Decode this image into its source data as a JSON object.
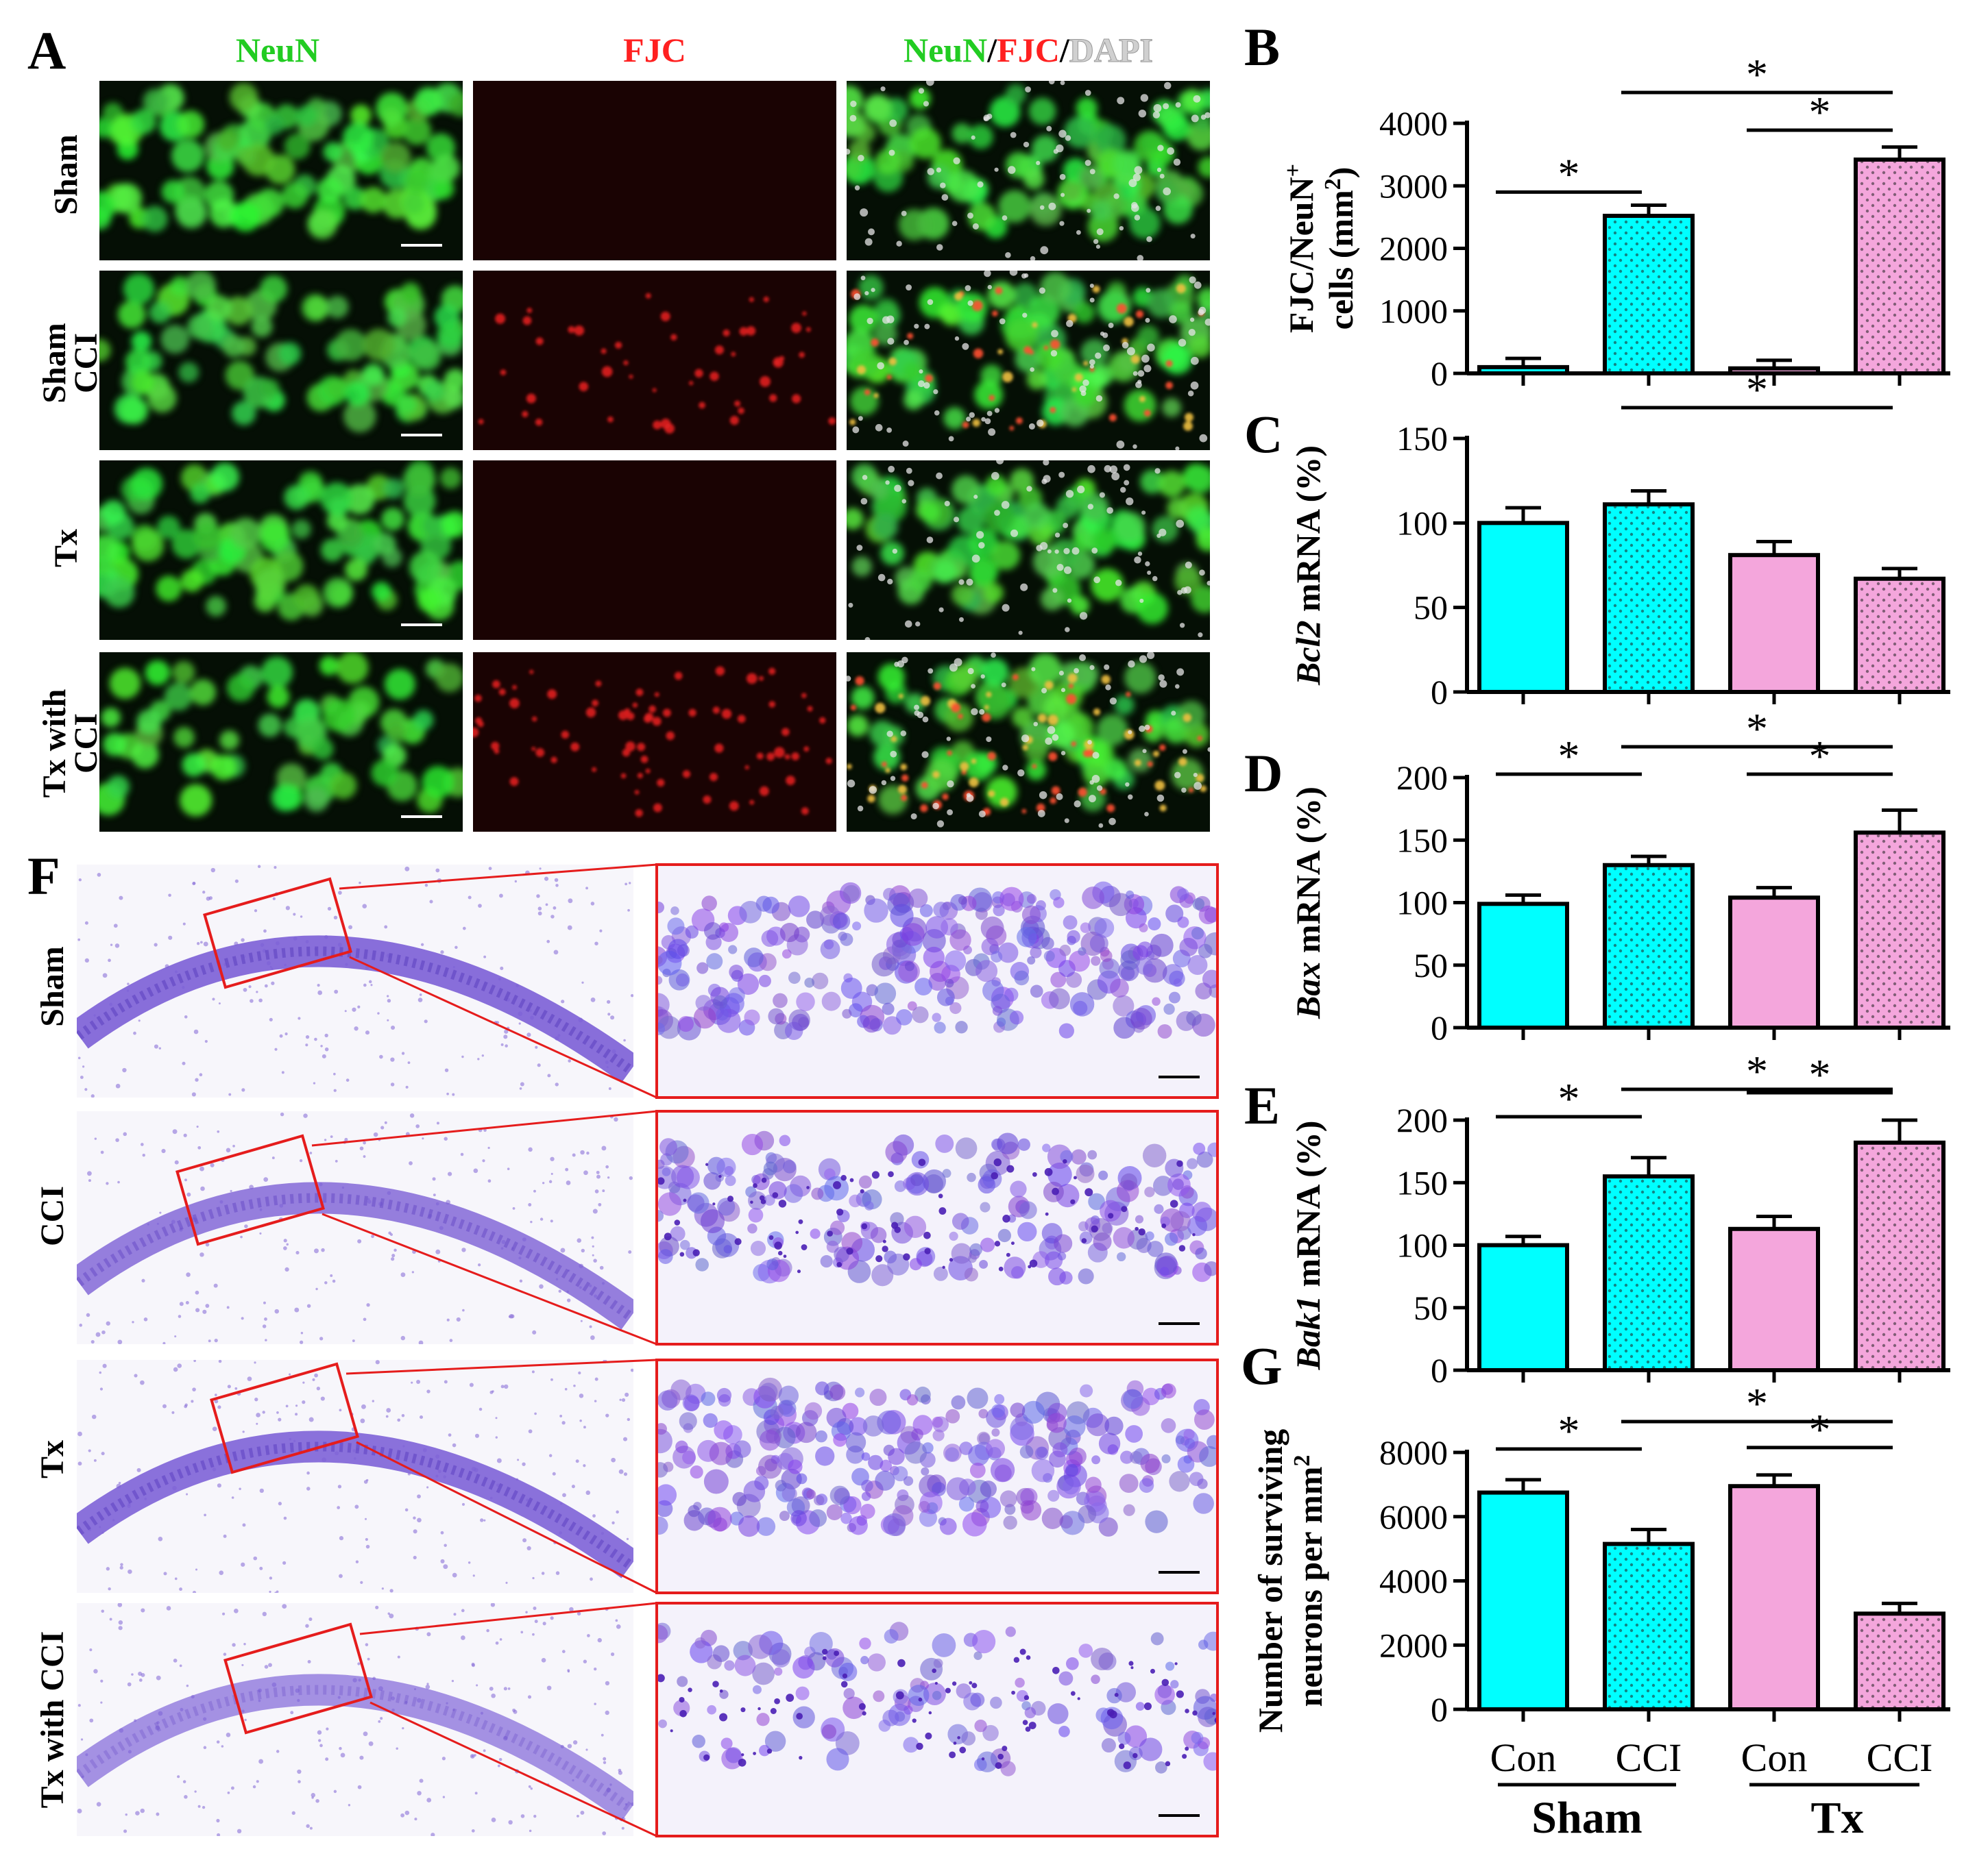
{
  "panel_labels": {
    "a": "A",
    "b": "B",
    "c": "C",
    "d": "D",
    "e": "E",
    "f": "F",
    "g": "G"
  },
  "colors": {
    "con": "#00ffff",
    "tx": "#f4a6dc",
    "neun": "#22cc22",
    "fjc": "#ff2020",
    "dapi": "#d0d0d0",
    "red_box": "#e51c1c",
    "nissl": "#7b5fd6"
  },
  "panel_a": {
    "col_headers": {
      "neun": "NeuN",
      "fjc": "FJC",
      "merge": {
        "neun": "NeuN",
        "sep1": "/",
        "fjc": "FJC",
        "sep2": "/",
        "dapi": "DAPI"
      }
    },
    "rows": [
      {
        "line1": "Sham",
        "line2": ""
      },
      {
        "line1": "Sham",
        "line2": "CCI"
      },
      {
        "line1": "Tx",
        "line2": ""
      },
      {
        "line1": "Tx with",
        "line2": "CCI"
      }
    ],
    "fjc_intensity": [
      0,
      0.55,
      0,
      0.85
    ],
    "neun_intensity": [
      1.0,
      0.85,
      1.0,
      0.6
    ]
  },
  "panel_f": {
    "rows": [
      "Sham",
      "CCI",
      "Tx",
      "Tx with CCI"
    ],
    "cell_density": [
      1.0,
      0.7,
      0.95,
      0.35
    ]
  },
  "x_axis": {
    "categories": [
      "Con",
      "CCI",
      "Con",
      "CCI"
    ],
    "groups": [
      "Sham",
      "Tx"
    ]
  },
  "chart_data": [
    {
      "id": "B",
      "type": "bar",
      "ylabel_line1": "FJC/NeuN",
      "ylabel_sup1": "+",
      "ylabel_line2": "cells (mm",
      "ylabel_sup2": "2",
      "ylabel_close": ")",
      "ylim": [
        0,
        4000
      ],
      "yticks": [
        0,
        1000,
        2000,
        3000,
        4000
      ],
      "tick_labels": [
        "0",
        "1000",
        "2000",
        "3000",
        "4000"
      ],
      "values": [
        100,
        2520,
        80,
        3420
      ],
      "errors": [
        140,
        170,
        130,
        200
      ],
      "significance": [
        {
          "from": 0,
          "to": 1,
          "label": "*"
        },
        {
          "from": 2,
          "to": 3,
          "label": "*"
        },
        {
          "from": 1,
          "to": 3,
          "label": "*"
        }
      ]
    },
    {
      "id": "C",
      "type": "bar",
      "ylabel_italic": "Bcl2",
      "ylabel_rest": " mRNA (%)",
      "ylim": [
        0,
        150
      ],
      "yticks": [
        0,
        50,
        100,
        150
      ],
      "tick_labels": [
        "0",
        "50",
        "100",
        "150"
      ],
      "values": [
        100,
        111,
        81,
        67
      ],
      "errors": [
        9,
        8,
        8,
        6
      ],
      "significance": [
        {
          "from": 1,
          "to": 3,
          "label": "*"
        }
      ]
    },
    {
      "id": "D",
      "type": "bar",
      "ylabel_italic": "Bax",
      "ylabel_rest": " mRNA (%)",
      "ylim": [
        0,
        200
      ],
      "yticks": [
        0,
        50,
        100,
        150,
        200
      ],
      "tick_labels": [
        "0",
        "50",
        "100",
        "150",
        "200"
      ],
      "values": [
        99,
        130,
        104,
        156
      ],
      "errors": [
        7,
        7,
        8,
        18
      ],
      "significance": [
        {
          "from": 0,
          "to": 1,
          "label": "*"
        },
        {
          "from": 2,
          "to": 3,
          "label": "*"
        },
        {
          "from": 1,
          "to": 3,
          "label": "*"
        }
      ]
    },
    {
      "id": "E",
      "type": "bar",
      "ylabel_italic": "Bak1",
      "ylabel_rest": " mRNA (%)",
      "ylim": [
        0,
        200
      ],
      "yticks": [
        0,
        50,
        100,
        150,
        200
      ],
      "tick_labels": [
        "0",
        "50",
        "100",
        "150",
        "200"
      ],
      "values": [
        100,
        155,
        113,
        182
      ],
      "errors": [
        7,
        15,
        10,
        18
      ],
      "significance": [
        {
          "from": 0,
          "to": 1,
          "label": "*"
        },
        {
          "from": 2,
          "to": 3,
          "label": "*"
        },
        {
          "from": 1,
          "to": 3,
          "label": "*"
        }
      ]
    },
    {
      "id": "G",
      "type": "bar",
      "ylabel_line1": "Number of surviving",
      "ylabel_line2": "neurons per mm",
      "ylabel_sup2": "2",
      "ylabel_close": "",
      "ylim": [
        0,
        8000
      ],
      "yticks": [
        0,
        2000,
        4000,
        6000,
        8000
      ],
      "tick_labels": [
        "0",
        "2000",
        "4000",
        "6000",
        "8000"
      ],
      "values": [
        6750,
        5150,
        6950,
        2980
      ],
      "errors": [
        400,
        450,
        350,
        320
      ],
      "significance": [
        {
          "from": 0,
          "to": 1,
          "label": "*"
        },
        {
          "from": 2,
          "to": 3,
          "label": "*"
        },
        {
          "from": 1,
          "to": 3,
          "label": "*"
        }
      ]
    }
  ]
}
